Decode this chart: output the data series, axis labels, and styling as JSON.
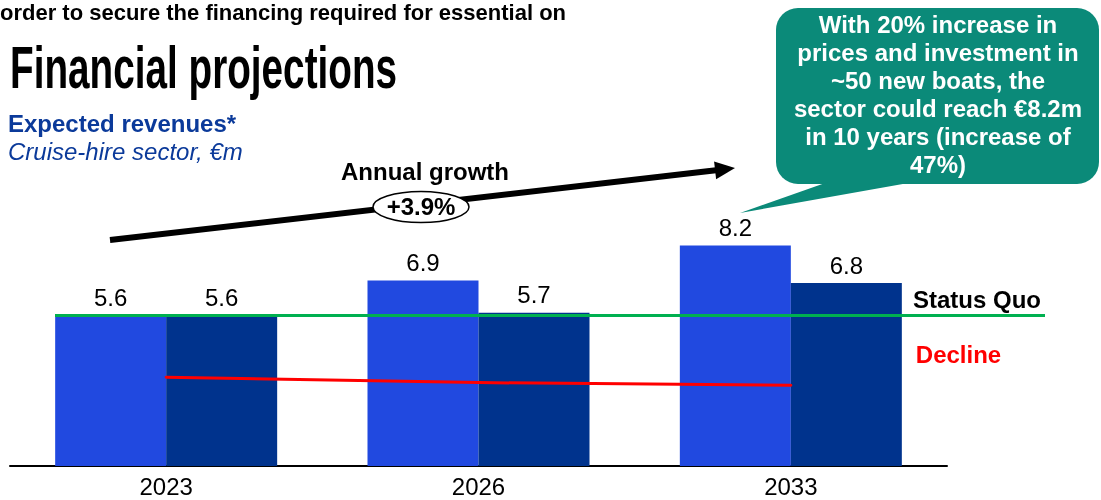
{
  "chart_data": {
    "type": "bar",
    "title": "Financial projections",
    "subtitle": "Expected revenues*",
    "ylabel": "Cruise-hire sector, €m",
    "categories": [
      "2023",
      "2026",
      "2033"
    ],
    "series": [
      {
        "color": "#2149e0",
        "values": [
          5.6,
          6.9,
          8.2
        ],
        "value_labels": [
          "5.6",
          "6.9",
          "8.2"
        ]
      },
      {
        "color": "#00338d",
        "values": [
          5.6,
          5.7,
          6.8
        ],
        "value_labels": [
          "5.6",
          "5.7",
          "6.8"
        ]
      },
      {
        "type": "line",
        "name": "Decline",
        "color": "#ff0000",
        "values": [
          3.3,
          3.1,
          3.0
        ]
      }
    ],
    "ref_lines": [
      {
        "axis": "y",
        "value": 5.6,
        "label": "Status Quo",
        "color": "#00b050"
      }
    ],
    "marker": "none",
    "line_style": "solid",
    "tick_labels": "x",
    "annotations": [
      "order to secure the financing required for essential on",
      "Annual growth",
      "+3.9%",
      "With 20% increase in prices and investment in ~50 new boats, the sector could reach €8.2m in 10 years (increase of 47%)"
    ]
  }
}
